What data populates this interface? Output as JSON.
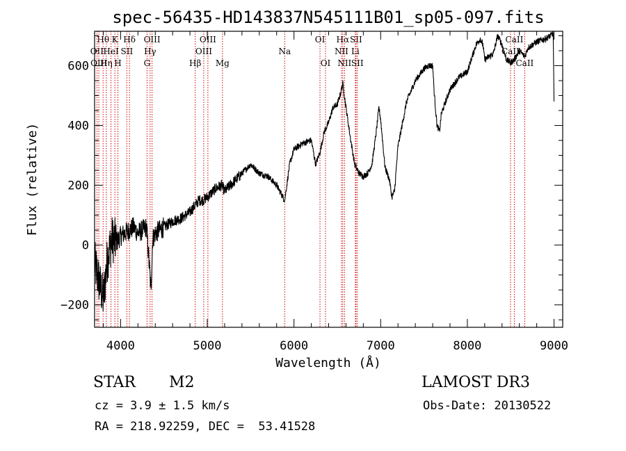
{
  "chart_data": {
    "type": "line",
    "title": "spec-56435-HD143837N545111B01_sp05-097.fits",
    "xlabel": "Wavelength (Å)",
    "ylabel": "Flux (relative)",
    "xlim": [
      3700,
      9100
    ],
    "ylim": [
      -275,
      715
    ],
    "xticks": [
      4000,
      5000,
      6000,
      7000,
      8000,
      9000
    ],
    "yticks": [
      -200,
      0,
      200,
      400,
      600
    ],
    "xtick_labels": [
      "4000",
      "5000",
      "6000",
      "7000",
      "8000",
      "9000"
    ],
    "ytick_labels": [
      "−200",
      "0",
      "200",
      "400",
      "600"
    ],
    "spectrum_anchor_points": {
      "x": [
        3700,
        3750,
        3800,
        3850,
        3900,
        3950,
        4000,
        4050,
        4100,
        4150,
        4200,
        4250,
        4300,
        4350,
        4370,
        4400,
        4450,
        4500,
        4600,
        4700,
        4800,
        4850,
        4880,
        4900,
        4950,
        5000,
        5100,
        5167,
        5200,
        5300,
        5400,
        5500,
        5600,
        5700,
        5800,
        5893,
        5950,
        6000,
        6100,
        6200,
        6250,
        6300,
        6350,
        6400,
        6450,
        6500,
        6530,
        6563,
        6600,
        6650,
        6700,
        6750,
        6800,
        6850,
        6900,
        6950,
        6980,
        7000,
        7050,
        7100,
        7130,
        7160,
        7200,
        7300,
        7400,
        7500,
        7550,
        7600,
        7620,
        7650,
        7680,
        7700,
        7800,
        7900,
        8000,
        8100,
        8150,
        8180,
        8200,
        8300,
        8350,
        8400,
        8450,
        8498,
        8542,
        8580,
        8600,
        8662,
        8700,
        8800,
        8900,
        8960,
        8990,
        9000
      ],
      "y": [
        -60,
        -120,
        -180,
        -40,
        20,
        10,
        30,
        40,
        50,
        60,
        40,
        50,
        60,
        -150,
        20,
        40,
        50,
        60,
        80,
        90,
        110,
        130,
        140,
        150,
        150,
        160,
        190,
        200,
        180,
        210,
        240,
        270,
        240,
        230,
        200,
        150,
        270,
        320,
        340,
        350,
        270,
        310,
        380,
        410,
        460,
        470,
        500,
        540,
        460,
        360,
        270,
        240,
        230,
        240,
        270,
        380,
        460,
        420,
        260,
        220,
        160,
        180,
        330,
        480,
        550,
        590,
        600,
        600,
        500,
        400,
        380,
        440,
        520,
        560,
        580,
        670,
        690,
        670,
        620,
        640,
        700,
        670,
        620,
        610,
        620,
        640,
        650,
        630,
        660,
        680,
        690,
        700,
        710,
        480
      ]
    },
    "spectral_lines": [
      {
        "name": "Hθ",
        "wavelength": 3798,
        "row": 0
      },
      {
        "name": "OII",
        "wavelength": 3727,
        "row": 1
      },
      {
        "name": "OIII",
        "wavelength": 3749,
        "row": 2
      },
      {
        "name": "Hη",
        "wavelength": 3835,
        "row": 2
      },
      {
        "name": "K",
        "wavelength": 3934,
        "row": 0
      },
      {
        "name": "HeI",
        "wavelength": 3889,
        "row": 1
      },
      {
        "name": "H",
        "wavelength": 3969,
        "row": 2
      },
      {
        "name": "SII",
        "wavelength": 4072,
        "row": 1
      },
      {
        "name": "Hδ",
        "wavelength": 4102,
        "row": 0
      },
      {
        "name": "OIII",
        "wavelength": 4363,
        "row": 0
      },
      {
        "name": "Hγ",
        "wavelength": 4340,
        "row": 1
      },
      {
        "name": "G",
        "wavelength": 4305,
        "row": 2
      },
      {
        "name": "Hβ",
        "wavelength": 4861,
        "row": 2
      },
      {
        "name": "OIII",
        "wavelength": 5007,
        "row": 0
      },
      {
        "name": "OIII",
        "wavelength": 4959,
        "row": 1
      },
      {
        "name": "Mg",
        "wavelength": 5175,
        "row": 2
      },
      {
        "name": "Na",
        "wavelength": 5893,
        "row": 1
      },
      {
        "name": "OI",
        "wavelength": 6300,
        "row": 0
      },
      {
        "name": "OI",
        "wavelength": 6364,
        "row": 2
      },
      {
        "name": "Hα",
        "wavelength": 6563,
        "row": 0
      },
      {
        "name": "SII",
        "wavelength": 6716,
        "row": 0
      },
      {
        "name": "NII",
        "wavelength": 6548,
        "row": 1
      },
      {
        "name": "Li",
        "wavelength": 6708,
        "row": 1
      },
      {
        "name": "NII",
        "wavelength": 6583,
        "row": 2
      },
      {
        "name": "SII",
        "wavelength": 6731,
        "row": 2
      },
      {
        "name": "CaII",
        "wavelength": 8542,
        "row": 0
      },
      {
        "name": "CaII",
        "wavelength": 8498,
        "row": 1
      },
      {
        "name": "CaII",
        "wavelength": 8662,
        "row": 2
      }
    ],
    "line_color": "#000000",
    "marker_color": "#cc0000"
  },
  "info": {
    "object_class": "STAR",
    "subclass": "M2",
    "survey": "LAMOST DR3",
    "cz": "cz = 3.9 ± 1.5 km/s",
    "obs_date": "Obs-Date: 20130522",
    "coords": "RA = 218.92259, DEC =  53.41528"
  }
}
